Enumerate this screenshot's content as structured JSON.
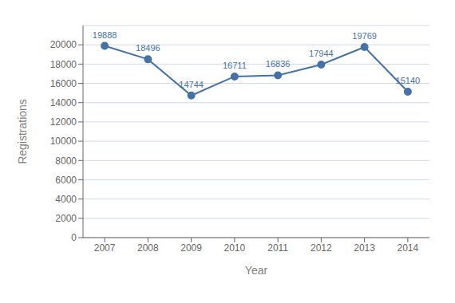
{
  "chart_data": {
    "type": "line",
    "x": [
      2007,
      2008,
      2009,
      2010,
      2011,
      2012,
      2013,
      2014
    ],
    "values": [
      19888,
      18496,
      14744,
      16711,
      16836,
      17944,
      19769,
      15140
    ],
    "color": "#4472a8",
    "xlabel": "Year",
    "ylabel": "Registrations",
    "xlim": [
      2006.5,
      2014.5
    ],
    "xticks": [
      2007,
      2008,
      2009,
      2010,
      2011,
      2012,
      2013,
      2014
    ],
    "ylim": [
      0,
      22000
    ],
    "yticks": [
      0,
      2000,
      4000,
      6000,
      8000,
      10000,
      12000,
      14000,
      16000,
      18000,
      20000
    ],
    "grid": "y",
    "data_labels": true,
    "marker": "o"
  }
}
